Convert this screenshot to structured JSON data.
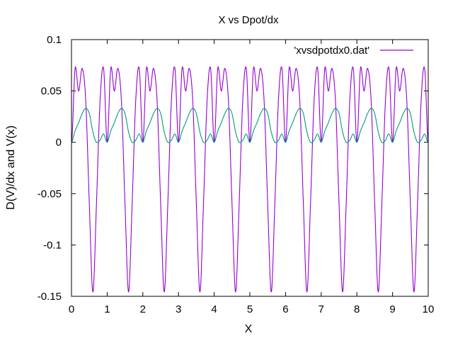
{
  "chart_data": {
    "type": "line",
    "title": "X vs Dpot/dx",
    "xlabel": "X",
    "ylabel": "D(V)/dx and V(x)",
    "xlim": [
      0,
      10
    ],
    "ylim": [
      -0.15,
      0.1
    ],
    "x_ticks": [
      "0",
      "1",
      "2",
      "3",
      "4",
      "5",
      "6",
      "7",
      "8",
      "9",
      "10"
    ],
    "y_ticks": [
      "0.1",
      "0.05",
      "0",
      "-0.05",
      "-0.1",
      "-0.15"
    ],
    "y_tick_values": [
      0.1,
      0.05,
      0,
      -0.05,
      -0.1,
      -0.15
    ],
    "grid": false,
    "legend_position": "top-right",
    "x": [
      0,
      0.1,
      0.2,
      0.3,
      0.4,
      0.5,
      0.6,
      0.7,
      0.8,
      0.9,
      1.0
    ],
    "period": 1.0,
    "series": [
      {
        "name": "'xvsdpotdx0.dat'",
        "color": "#9400d3",
        "values": [
          0.0,
          0.072,
          0.05,
          0.072,
          0.04,
          -0.06,
          -0.146,
          -0.06,
          0.04,
          0.072,
          0.0
        ]
      },
      {
        "name": "",
        "color": "#009e73",
        "values": [
          0.0,
          0.011,
          0.019,
          0.028,
          0.033,
          0.028,
          0.01,
          0.0,
          0.002,
          0.008,
          0.0
        ]
      }
    ]
  }
}
